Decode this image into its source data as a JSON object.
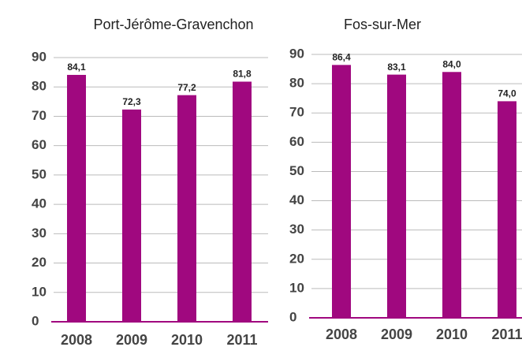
{
  "chart_data": [
    {
      "type": "bar",
      "title": "Port-Jérôme-Gravenchon",
      "categories": [
        "2008",
        "2009",
        "2010",
        "2011"
      ],
      "values": [
        84.1,
        72.3,
        77.2,
        81.8
      ],
      "value_labels": [
        "84,1",
        "72,3",
        "77,2",
        "81,8"
      ],
      "color": "#a0087f",
      "ylim": [
        0,
        90
      ],
      "yticks": [
        0,
        10,
        20,
        30,
        40,
        50,
        60,
        70,
        80,
        90
      ],
      "grid": true
    },
    {
      "type": "bar",
      "title": "Fos-sur-Mer",
      "categories": [
        "2008",
        "2009",
        "2010",
        "2011"
      ],
      "values": [
        86.4,
        83.1,
        84.0,
        74.0
      ],
      "value_labels": [
        "86,4",
        "83,1",
        "84,0",
        "74,0"
      ],
      "color": "#a0087f",
      "ylim": [
        0,
        90
      ],
      "yticks": [
        0,
        10,
        20,
        30,
        40,
        50,
        60,
        70,
        80,
        90
      ],
      "grid": true
    }
  ]
}
